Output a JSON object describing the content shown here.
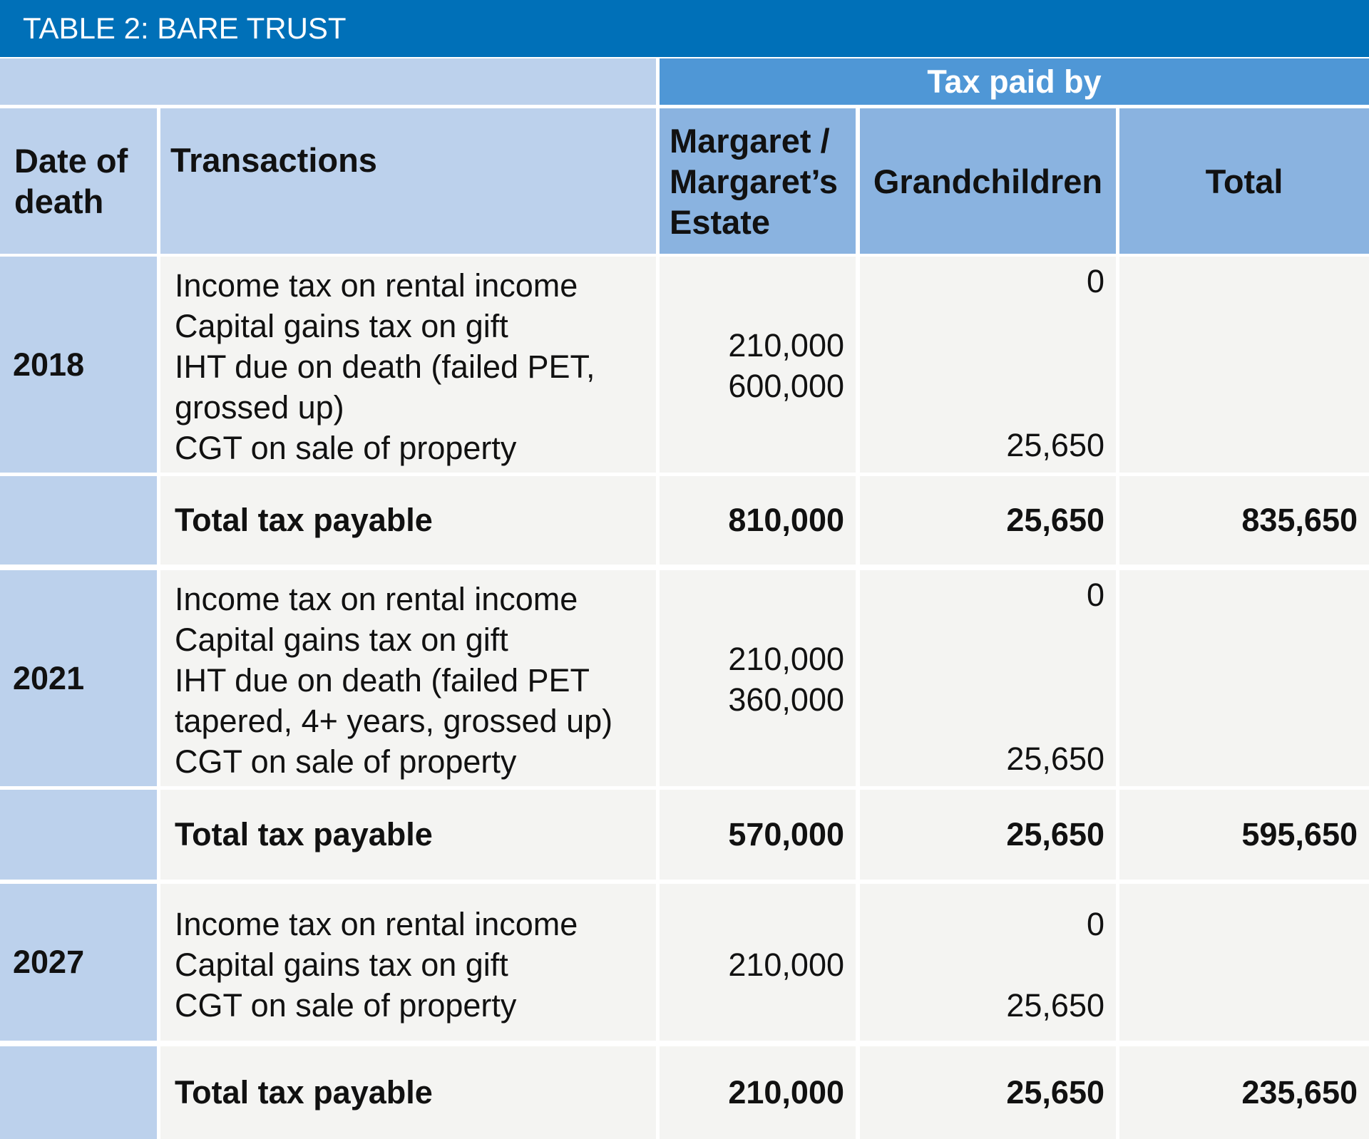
{
  "title": "TABLE 2: BARE TRUST",
  "group_header": "Tax paid by",
  "headers": {
    "date": [
      "Date of",
      "death"
    ],
    "transactions": "Transactions",
    "margaret": [
      "Margaret /",
      "Margaret’s",
      "Estate"
    ],
    "grandchildren": "Grandchildren",
    "total": "Total"
  },
  "rows": [
    {
      "year": "2018",
      "transactions": [
        "Income tax on rental income",
        "Capital gains tax on gift",
        "IHT due on death (failed PET,",
        "grossed up)",
        "CGT on sale of property"
      ],
      "margaret_values": [
        "210,000",
        "600,000"
      ],
      "grandchildren_values": [
        "0",
        "25,650"
      ],
      "total_label": "Total tax payable",
      "total_margaret": "810,000",
      "total_grandchildren": "25,650",
      "total_total": "835,650"
    },
    {
      "year": "2021",
      "transactions": [
        "Income tax on rental income",
        "Capital gains tax on gift",
        "IHT due on death (failed PET",
        "tapered, 4+ years, grossed up)",
        "CGT on sale of property"
      ],
      "margaret_values": [
        "210,000",
        "360,000"
      ],
      "grandchildren_values": [
        "0",
        "25,650"
      ],
      "total_label": "Total tax payable",
      "total_margaret": "570,000",
      "total_grandchildren": "25,650",
      "total_total": "595,650"
    },
    {
      "year": "2027",
      "transactions": [
        "Income tax on rental income",
        "Capital gains tax on gift",
        "CGT on sale of property"
      ],
      "margaret_values": [
        "210,000"
      ],
      "grandchildren_values": [
        "0",
        "25,650"
      ],
      "total_label": "Total tax payable",
      "total_margaret": "210,000",
      "total_grandchildren": "25,650",
      "total_total": "235,650"
    }
  ]
}
